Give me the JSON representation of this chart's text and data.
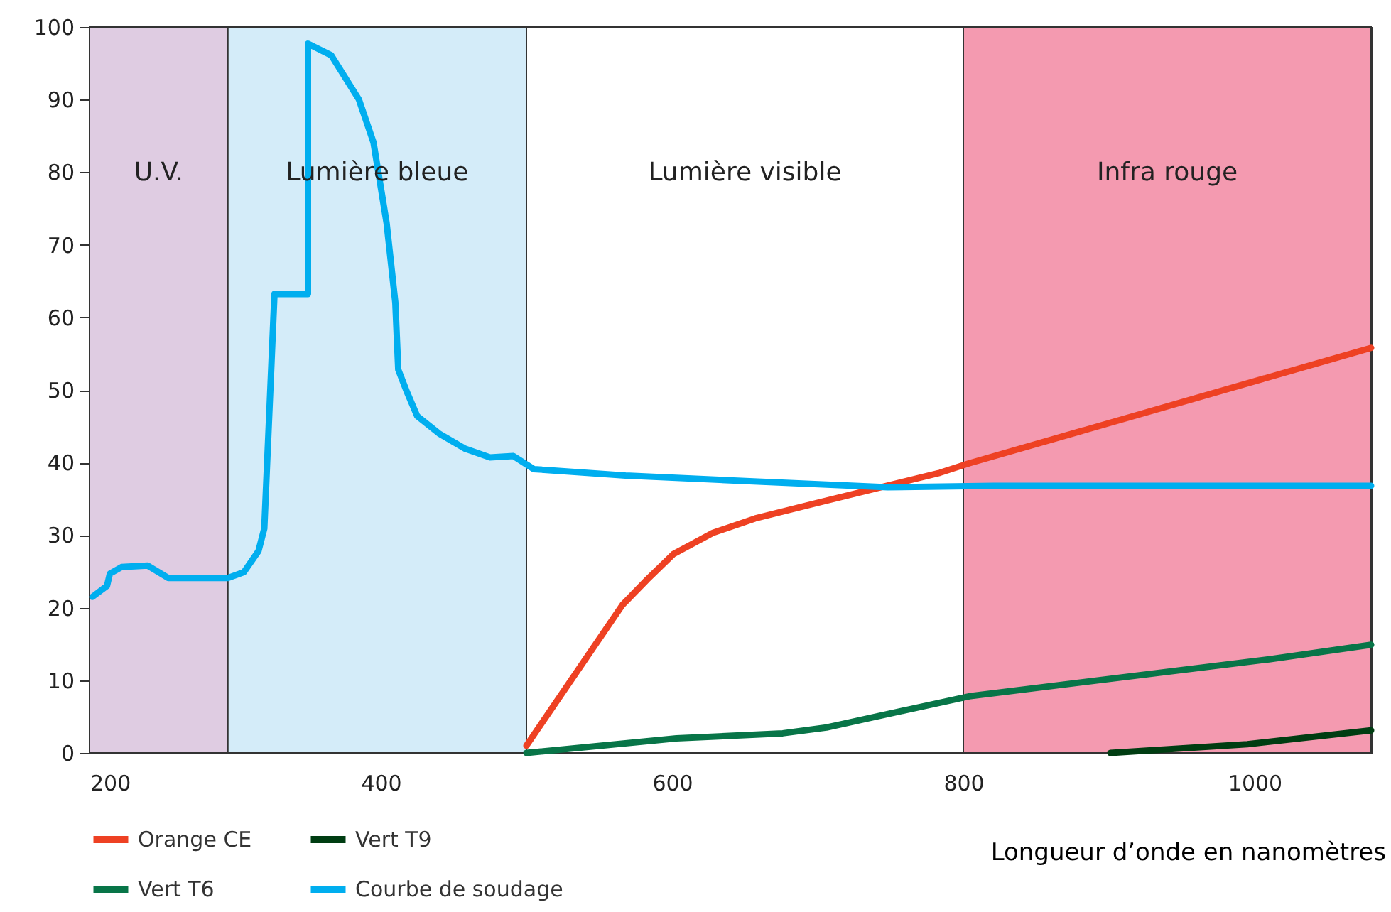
{
  "chart_data": {
    "type": "line",
    "xlabel": "Longueur d’onde en nanomètres",
    "xlim": [
      200,
      1080
    ],
    "xticks": [
      200,
      400,
      600,
      800,
      1000
    ],
    "ylim": [
      0,
      100
    ],
    "yticks": [
      0,
      10,
      20,
      30,
      40,
      50,
      60,
      70,
      80,
      90,
      100
    ],
    "legend": "bottom left",
    "marker": "none",
    "line_style": "solid",
    "bands": [
      {
        "axis": "x",
        "from": 200,
        "to": 295,
        "label": "U.V.",
        "color": "#dfcce2"
      },
      {
        "axis": "x",
        "from": 295,
        "to": 500,
        "label": "Lumière bleue",
        "color": "#d4ecf9"
      },
      {
        "axis": "x",
        "from": 500,
        "to": 800,
        "label": "Lumière visible",
        "color": "#ffffff"
      },
      {
        "axis": "x",
        "from": 800,
        "to": 1080,
        "label": "Infra rouge",
        "color": "#f49ab0"
      }
    ],
    "series": [
      {
        "name": "Orange CE",
        "color": "#ee4123",
        "x": [
          500,
          566,
          583,
          601,
          628,
          657,
          699,
          784,
          804,
          1080
        ],
        "values": [
          1,
          20.4,
          23.9,
          27.4,
          30.3,
          32.3,
          34.4,
          38.6,
          39.9,
          55.8
        ]
      },
      {
        "name": "Vert T9",
        "color": "#003d12",
        "x": [
          901,
          995,
          1080
        ],
        "values": [
          0,
          1.2,
          3.1
        ]
      },
      {
        "name": "Vert T6",
        "color": "#087548",
        "x": [
          500,
          603,
          676,
          706,
          804,
          1010,
          1080
        ],
        "values": [
          0,
          2,
          2.7,
          3.5,
          7.8,
          12.9,
          14.9
        ]
      },
      {
        "name": "Courbe de soudage",
        "color": "#00aeef",
        "x": [
          202,
          212,
          214,
          222,
          240,
          254,
          295,
          306,
          316,
          320,
          327,
          350,
          350,
          366,
          385,
          395,
          404,
          410,
          412,
          418,
          425,
          440,
          458,
          475,
          491,
          505,
          568,
          656,
          748,
          821,
          1080
        ],
        "values": [
          21.5,
          23,
          24.7,
          25.6,
          25.8,
          24.1,
          24.1,
          24.9,
          27.8,
          30.9,
          63.2,
          63.2,
          97.7,
          96.1,
          90,
          84.1,
          73,
          62,
          52.8,
          49.7,
          46.4,
          44,
          41.9,
          40.7,
          40.9,
          39.1,
          38.2,
          37.4,
          36.6,
          36.8,
          36.8
        ]
      }
    ]
  }
}
